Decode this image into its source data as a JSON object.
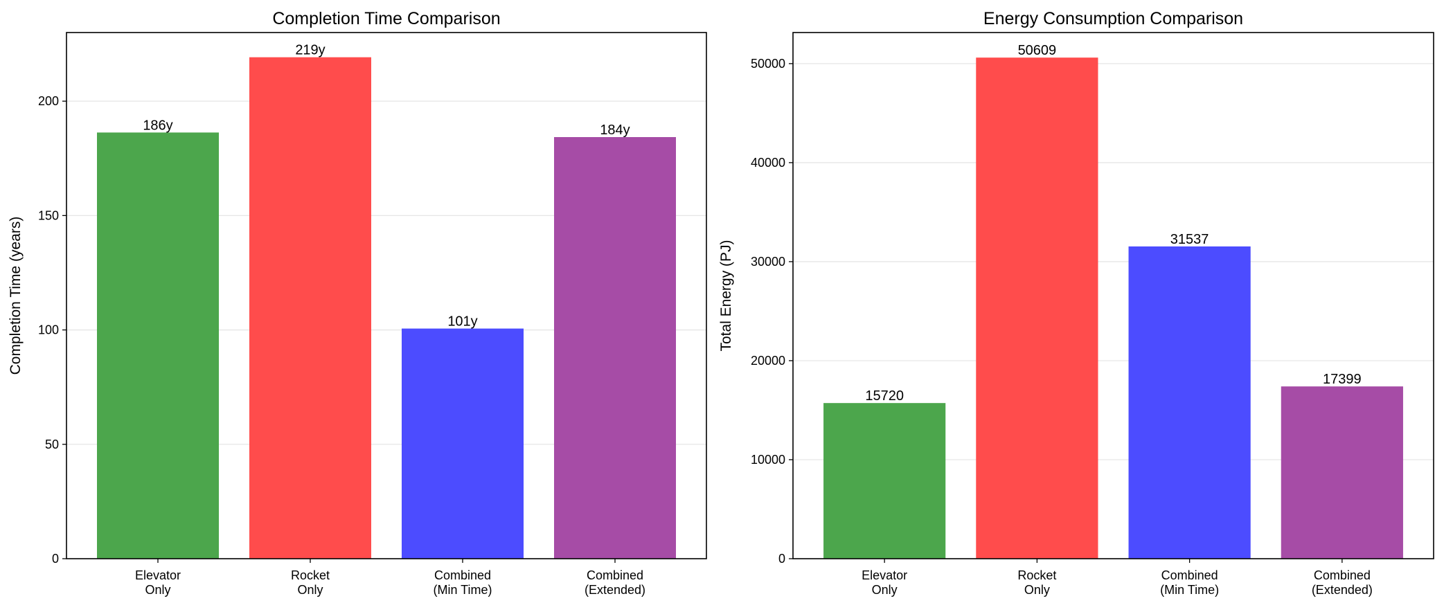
{
  "chart_data": [
    {
      "type": "bar",
      "title": "Completion Time Comparison",
      "xlabel": "",
      "ylabel": "Completion Time (years)",
      "categories": [
        "Elevator\nOnly",
        "Rocket\nOnly",
        "Combined\n(Min Time)",
        "Combined\n(Extended)"
      ],
      "values": [
        186.3,
        219.2,
        100.6,
        184.3
      ],
      "data_labels": [
        "186y",
        "219y",
        "101y",
        "184y"
      ],
      "colors": [
        "#4ca64c",
        "#ff4c4c",
        "#4c4cff",
        "#a64ca6"
      ],
      "ylim": [
        0,
        230
      ],
      "yticks": [
        0,
        50,
        100,
        150,
        200
      ],
      "grid": "y"
    },
    {
      "type": "bar",
      "title": "Energy Consumption Comparison",
      "xlabel": "",
      "ylabel": "Total Energy (PJ)",
      "categories": [
        "Elevator\nOnly",
        "Rocket\nOnly",
        "Combined\n(Min Time)",
        "Combined\n(Extended)"
      ],
      "values": [
        15720,
        50609,
        31537,
        17399
      ],
      "data_labels": [
        "15720",
        "50609",
        "31537",
        "17399"
      ],
      "colors": [
        "#4ca64c",
        "#ff4c4c",
        "#4c4cff",
        "#a64ca6"
      ],
      "ylim": [
        0,
        53140
      ],
      "yticks": [
        0,
        10000,
        20000,
        30000,
        40000,
        50000
      ],
      "grid": "y"
    }
  ]
}
